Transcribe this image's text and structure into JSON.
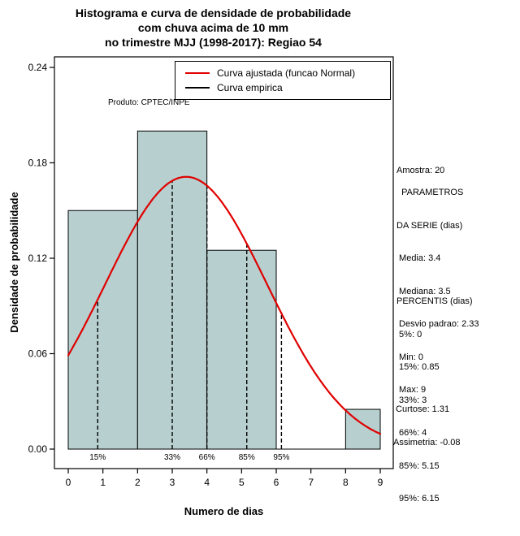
{
  "chart_data": {
    "type": "bar",
    "subtype": "histogram_with_density_curve",
    "title": [
      "Histograma e curva de densidade de probabilidade",
      "com chuva acima de 10 mm",
      "no trimestre MJJ (1998-2017): Regiao 54"
    ],
    "xlabel": "Numero de dias",
    "ylabel": "Densidade de probabilidade",
    "xlim": [
      0,
      9
    ],
    "ylim": [
      0,
      0.24
    ],
    "x_ticks": [
      0,
      1,
      2,
      3,
      4,
      5,
      6,
      7,
      8,
      9
    ],
    "y_ticks": [
      "0.00",
      "0.06",
      "0.12",
      "0.18",
      "0.24"
    ],
    "bars": [
      {
        "from": 0,
        "to": 2,
        "density": 0.15
      },
      {
        "from": 2,
        "to": 4,
        "density": 0.2
      },
      {
        "from": 4,
        "to": 6,
        "density": 0.125
      },
      {
        "from": 6,
        "to": 8,
        "density": 0
      },
      {
        "from": 8,
        "to": 9,
        "density": 0.025
      }
    ],
    "bar_fill": "#b7cfcf",
    "normal_fit": {
      "mean": 3.4,
      "sd": 2.33,
      "color": "#e00000"
    },
    "percentile_markers": [
      {
        "label": "15%",
        "x": 0.85
      },
      {
        "label": "33%",
        "x": 3
      },
      {
        "label": "66%",
        "x": 4
      },
      {
        "label": "85%",
        "x": 5.15
      },
      {
        "label": "95%",
        "x": 6.15
      }
    ],
    "legend": {
      "items": [
        {
          "label": "Curva ajustada (funcao Normal)",
          "color": "#e00000"
        },
        {
          "label": "Curva empirica",
          "color": "#000000"
        }
      ]
    },
    "annotation": "Produto: CPTEC/INPE"
  },
  "stats": {
    "amostra": "Amostra: 20",
    "serie": [
      "  PARAMETROS",
      "DA SERIE (dias)",
      " Media: 3.4",
      " Mediana: 3.5",
      " Desvio padrao: 2.33",
      " Min: 0",
      " Max: 9"
    ],
    "percentis": [
      "PERCENTIS (dias)",
      " 5%: 0",
      " 15%: 0.85",
      " 33%: 3",
      " 66%: 4",
      " 85%: 5.15",
      " 95%: 6.15"
    ],
    "momentos": [
      " Curtose: 1.31",
      "Assimetria: -0.08"
    ]
  }
}
